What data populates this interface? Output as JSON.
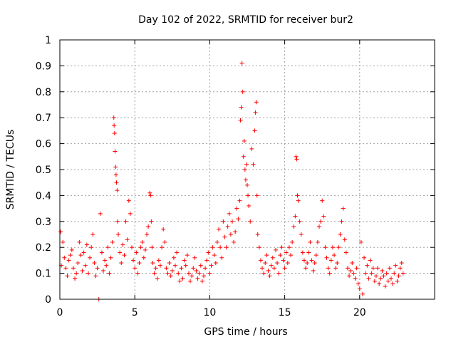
{
  "chart_data": {
    "type": "scatter",
    "title": "Day 102 of 2022, SRMTID for receiver bur2",
    "xlabel": "GPS time / hours",
    "ylabel": "SRMTID / TECUs",
    "xlim": [
      0,
      25
    ],
    "ylim": [
      0,
      1
    ],
    "xticks": [
      0,
      5,
      10,
      15,
      20
    ],
    "xtick_labels": [
      "0",
      "5",
      "10",
      "15",
      "20"
    ],
    "yticks": [
      0,
      0.1,
      0.2,
      0.3,
      0.4,
      0.5,
      0.6,
      0.7,
      0.8,
      0.9,
      1
    ],
    "ytick_labels": [
      "0",
      "0.1",
      "0.2",
      "0.3",
      "0.4",
      "0.5",
      "0.6",
      "0.7",
      "0.8",
      "0.9",
      "1"
    ],
    "grid": true,
    "marker": "+",
    "color": "#ff0000",
    "series": [
      {
        "name": "SRMTID",
        "points": [
          [
            0.05,
            0.26
          ],
          [
            0.1,
            0.13
          ],
          [
            0.2,
            0.22
          ],
          [
            0.3,
            0.16
          ],
          [
            0.4,
            0.12
          ],
          [
            0.5,
            0.09
          ],
          [
            0.6,
            0.15
          ],
          [
            0.7,
            0.17
          ],
          [
            0.8,
            0.19
          ],
          [
            0.9,
            0.12
          ],
          [
            1.0,
            0.08
          ],
          [
            1.1,
            0.1
          ],
          [
            1.2,
            0.14
          ],
          [
            1.3,
            0.22
          ],
          [
            1.4,
            0.17
          ],
          [
            1.5,
            0.11
          ],
          [
            1.6,
            0.18
          ],
          [
            1.7,
            0.13
          ],
          [
            1.8,
            0.21
          ],
          [
            1.9,
            0.1
          ],
          [
            2.0,
            0.16
          ],
          [
            2.1,
            0.2
          ],
          [
            2.2,
            0.25
          ],
          [
            2.3,
            0.14
          ],
          [
            2.4,
            0.09
          ],
          [
            2.5,
            0.12
          ],
          [
            2.6,
            0.0
          ],
          [
            2.7,
            0.33
          ],
          [
            2.8,
            0.18
          ],
          [
            2.9,
            0.11
          ],
          [
            3.0,
            0.15
          ],
          [
            3.1,
            0.13
          ],
          [
            3.2,
            0.2
          ],
          [
            3.3,
            0.1
          ],
          [
            3.4,
            0.16
          ],
          [
            3.5,
            0.22
          ],
          [
            3.6,
            0.7
          ],
          [
            3.62,
            0.67
          ],
          [
            3.65,
            0.64
          ],
          [
            3.68,
            0.57
          ],
          [
            3.72,
            0.51
          ],
          [
            3.75,
            0.48
          ],
          [
            3.78,
            0.45
          ],
          [
            3.82,
            0.42
          ],
          [
            3.85,
            0.3
          ],
          [
            3.9,
            0.25
          ],
          [
            4.0,
            0.18
          ],
          [
            4.1,
            0.14
          ],
          [
            4.2,
            0.21
          ],
          [
            4.3,
            0.17
          ],
          [
            4.4,
            0.3
          ],
          [
            4.5,
            0.23
          ],
          [
            4.6,
            0.38
          ],
          [
            4.7,
            0.33
          ],
          [
            4.8,
            0.2
          ],
          [
            4.9,
            0.15
          ],
          [
            5.0,
            0.12
          ],
          [
            5.1,
            0.18
          ],
          [
            5.2,
            0.1
          ],
          [
            5.3,
            0.14
          ],
          [
            5.4,
            0.2
          ],
          [
            5.5,
            0.22
          ],
          [
            5.6,
            0.16
          ],
          [
            5.7,
            0.19
          ],
          [
            5.8,
            0.25
          ],
          [
            5.9,
            0.28
          ],
          [
            6.0,
            0.41
          ],
          [
            6.05,
            0.4
          ],
          [
            6.1,
            0.3
          ],
          [
            6.15,
            0.2
          ],
          [
            6.2,
            0.14
          ],
          [
            6.3,
            0.1
          ],
          [
            6.4,
            0.12
          ],
          [
            6.5,
            0.08
          ],
          [
            6.6,
            0.15
          ],
          [
            6.7,
            0.13
          ],
          [
            6.8,
            0.2
          ],
          [
            6.9,
            0.27
          ],
          [
            7.0,
            0.22
          ],
          [
            7.1,
            0.12
          ],
          [
            7.2,
            0.1
          ],
          [
            7.3,
            0.14
          ],
          [
            7.4,
            0.09
          ],
          [
            7.5,
            0.11
          ],
          [
            7.6,
            0.16
          ],
          [
            7.7,
            0.13
          ],
          [
            7.8,
            0.18
          ],
          [
            7.9,
            0.1
          ],
          [
            8.0,
            0.07
          ],
          [
            8.1,
            0.12
          ],
          [
            8.2,
            0.08
          ],
          [
            8.3,
            0.15
          ],
          [
            8.4,
            0.13
          ],
          [
            8.5,
            0.17
          ],
          [
            8.6,
            0.1
          ],
          [
            8.7,
            0.07
          ],
          [
            8.8,
            0.09
          ],
          [
            8.9,
            0.12
          ],
          [
            9.0,
            0.16
          ],
          [
            9.1,
            0.11
          ],
          [
            9.2,
            0.08
          ],
          [
            9.3,
            0.1
          ],
          [
            9.4,
            0.13
          ],
          [
            9.5,
            0.07
          ],
          [
            9.6,
            0.09
          ],
          [
            9.7,
            0.12
          ],
          [
            9.8,
            0.15
          ],
          [
            9.9,
            0.18
          ],
          [
            10.0,
            0.1
          ],
          [
            10.1,
            0.13
          ],
          [
            10.2,
            0.2
          ],
          [
            10.3,
            0.17
          ],
          [
            10.4,
            0.14
          ],
          [
            10.5,
            0.22
          ],
          [
            10.6,
            0.27
          ],
          [
            10.7,
            0.2
          ],
          [
            10.8,
            0.16
          ],
          [
            10.9,
            0.3
          ],
          [
            11.0,
            0.24
          ],
          [
            11.1,
            0.2
          ],
          [
            11.2,
            0.28
          ],
          [
            11.3,
            0.33
          ],
          [
            11.4,
            0.25
          ],
          [
            11.5,
            0.3
          ],
          [
            11.6,
            0.22
          ],
          [
            11.7,
            0.26
          ],
          [
            11.8,
            0.35
          ],
          [
            11.9,
            0.31
          ],
          [
            12.0,
            0.38
          ],
          [
            12.05,
            0.69
          ],
          [
            12.1,
            0.74
          ],
          [
            12.15,
            0.91
          ],
          [
            12.2,
            0.8
          ],
          [
            12.25,
            0.55
          ],
          [
            12.3,
            0.61
          ],
          [
            12.35,
            0.5
          ],
          [
            12.4,
            0.46
          ],
          [
            12.45,
            0.52
          ],
          [
            12.5,
            0.44
          ],
          [
            12.55,
            0.4
          ],
          [
            12.6,
            0.36
          ],
          [
            12.7,
            0.3
          ],
          [
            12.8,
            0.58
          ],
          [
            12.9,
            0.52
          ],
          [
            13.0,
            0.65
          ],
          [
            13.05,
            0.72
          ],
          [
            13.1,
            0.76
          ],
          [
            13.15,
            0.4
          ],
          [
            13.2,
            0.25
          ],
          [
            13.3,
            0.2
          ],
          [
            13.4,
            0.15
          ],
          [
            13.5,
            0.12
          ],
          [
            13.6,
            0.1
          ],
          [
            13.7,
            0.14
          ],
          [
            13.8,
            0.17
          ],
          [
            13.9,
            0.11
          ],
          [
            14.0,
            0.09
          ],
          [
            14.1,
            0.13
          ],
          [
            14.2,
            0.16
          ],
          [
            14.3,
            0.12
          ],
          [
            14.4,
            0.19
          ],
          [
            14.5,
            0.14
          ],
          [
            14.6,
            0.1
          ],
          [
            14.7,
            0.17
          ],
          [
            14.8,
            0.2
          ],
          [
            14.9,
            0.15
          ],
          [
            15.0,
            0.12
          ],
          [
            15.1,
            0.18
          ],
          [
            15.2,
            0.14
          ],
          [
            15.3,
            0.2
          ],
          [
            15.4,
            0.17
          ],
          [
            15.5,
            0.22
          ],
          [
            15.6,
            0.28
          ],
          [
            15.7,
            0.32
          ],
          [
            15.75,
            0.55
          ],
          [
            15.8,
            0.54
          ],
          [
            15.85,
            0.4
          ],
          [
            15.9,
            0.38
          ],
          [
            16.0,
            0.3
          ],
          [
            16.1,
            0.25
          ],
          [
            16.2,
            0.18
          ],
          [
            16.3,
            0.15
          ],
          [
            16.4,
            0.12
          ],
          [
            16.5,
            0.14
          ],
          [
            16.6,
            0.18
          ],
          [
            16.7,
            0.22
          ],
          [
            16.8,
            0.15
          ],
          [
            16.9,
            0.11
          ],
          [
            17.0,
            0.14
          ],
          [
            17.1,
            0.17
          ],
          [
            17.2,
            0.22
          ],
          [
            17.3,
            0.28
          ],
          [
            17.4,
            0.3
          ],
          [
            17.5,
            0.38
          ],
          [
            17.6,
            0.32
          ],
          [
            17.7,
            0.2
          ],
          [
            17.8,
            0.16
          ],
          [
            17.9,
            0.12
          ],
          [
            18.0,
            0.1
          ],
          [
            18.1,
            0.15
          ],
          [
            18.2,
            0.2
          ],
          [
            18.3,
            0.17
          ],
          [
            18.4,
            0.12
          ],
          [
            18.5,
            0.14
          ],
          [
            18.6,
            0.2
          ],
          [
            18.7,
            0.25
          ],
          [
            18.8,
            0.3
          ],
          [
            18.9,
            0.35
          ],
          [
            19.0,
            0.23
          ],
          [
            19.1,
            0.18
          ],
          [
            19.2,
            0.12
          ],
          [
            19.3,
            0.09
          ],
          [
            19.4,
            0.11
          ],
          [
            19.5,
            0.14
          ],
          [
            19.6,
            0.1
          ],
          [
            19.7,
            0.08
          ],
          [
            19.8,
            0.12
          ],
          [
            19.9,
            0.06
          ],
          [
            20.0,
            0.04
          ],
          [
            20.1,
            0.22
          ],
          [
            20.2,
            0.02
          ],
          [
            20.3,
            0.16
          ],
          [
            20.4,
            0.1
          ],
          [
            20.5,
            0.13
          ],
          [
            20.6,
            0.08
          ],
          [
            20.7,
            0.15
          ],
          [
            20.8,
            0.1
          ],
          [
            20.9,
            0.12
          ],
          [
            21.0,
            0.07
          ],
          [
            21.1,
            0.09
          ],
          [
            21.2,
            0.12
          ],
          [
            21.3,
            0.06
          ],
          [
            21.4,
            0.08
          ],
          [
            21.5,
            0.11
          ],
          [
            21.6,
            0.09
          ],
          [
            21.7,
            0.05
          ],
          [
            21.8,
            0.1
          ],
          [
            21.9,
            0.07
          ],
          [
            22.0,
            0.12
          ],
          [
            22.1,
            0.08
          ],
          [
            22.2,
            0.06
          ],
          [
            22.3,
            0.1
          ],
          [
            22.4,
            0.13
          ],
          [
            22.5,
            0.07
          ],
          [
            22.6,
            0.09
          ],
          [
            22.7,
            0.12
          ],
          [
            22.8,
            0.14
          ],
          [
            22.9,
            0.1
          ]
        ]
      }
    ]
  }
}
